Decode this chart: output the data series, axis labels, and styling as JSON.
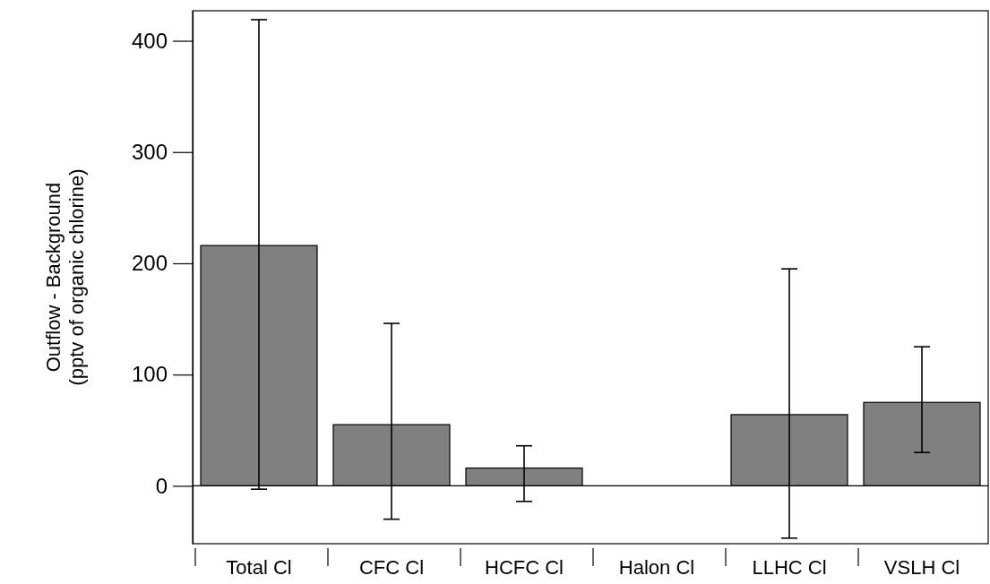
{
  "chart_data": {
    "type": "bar",
    "ylabel": "Outflow - Background\n(pptv of organic chlorine)",
    "categories": [
      "Total Cl",
      "CFC Cl",
      "HCFC Cl",
      "Halon Cl",
      "LLHC Cl",
      "VSLH Cl"
    ],
    "values": [
      216,
      55,
      16,
      0,
      64,
      75
    ],
    "errors": [
      [
        -3,
        419
      ],
      [
        -30,
        146
      ],
      [
        -14,
        36
      ],
      null,
      [
        -47,
        195
      ],
      [
        30,
        125
      ]
    ],
    "color": "#808080",
    "ylim": [
      -52,
      427
    ],
    "yticks": [
      0,
      100,
      200,
      300,
      400
    ],
    "grid": false
  }
}
